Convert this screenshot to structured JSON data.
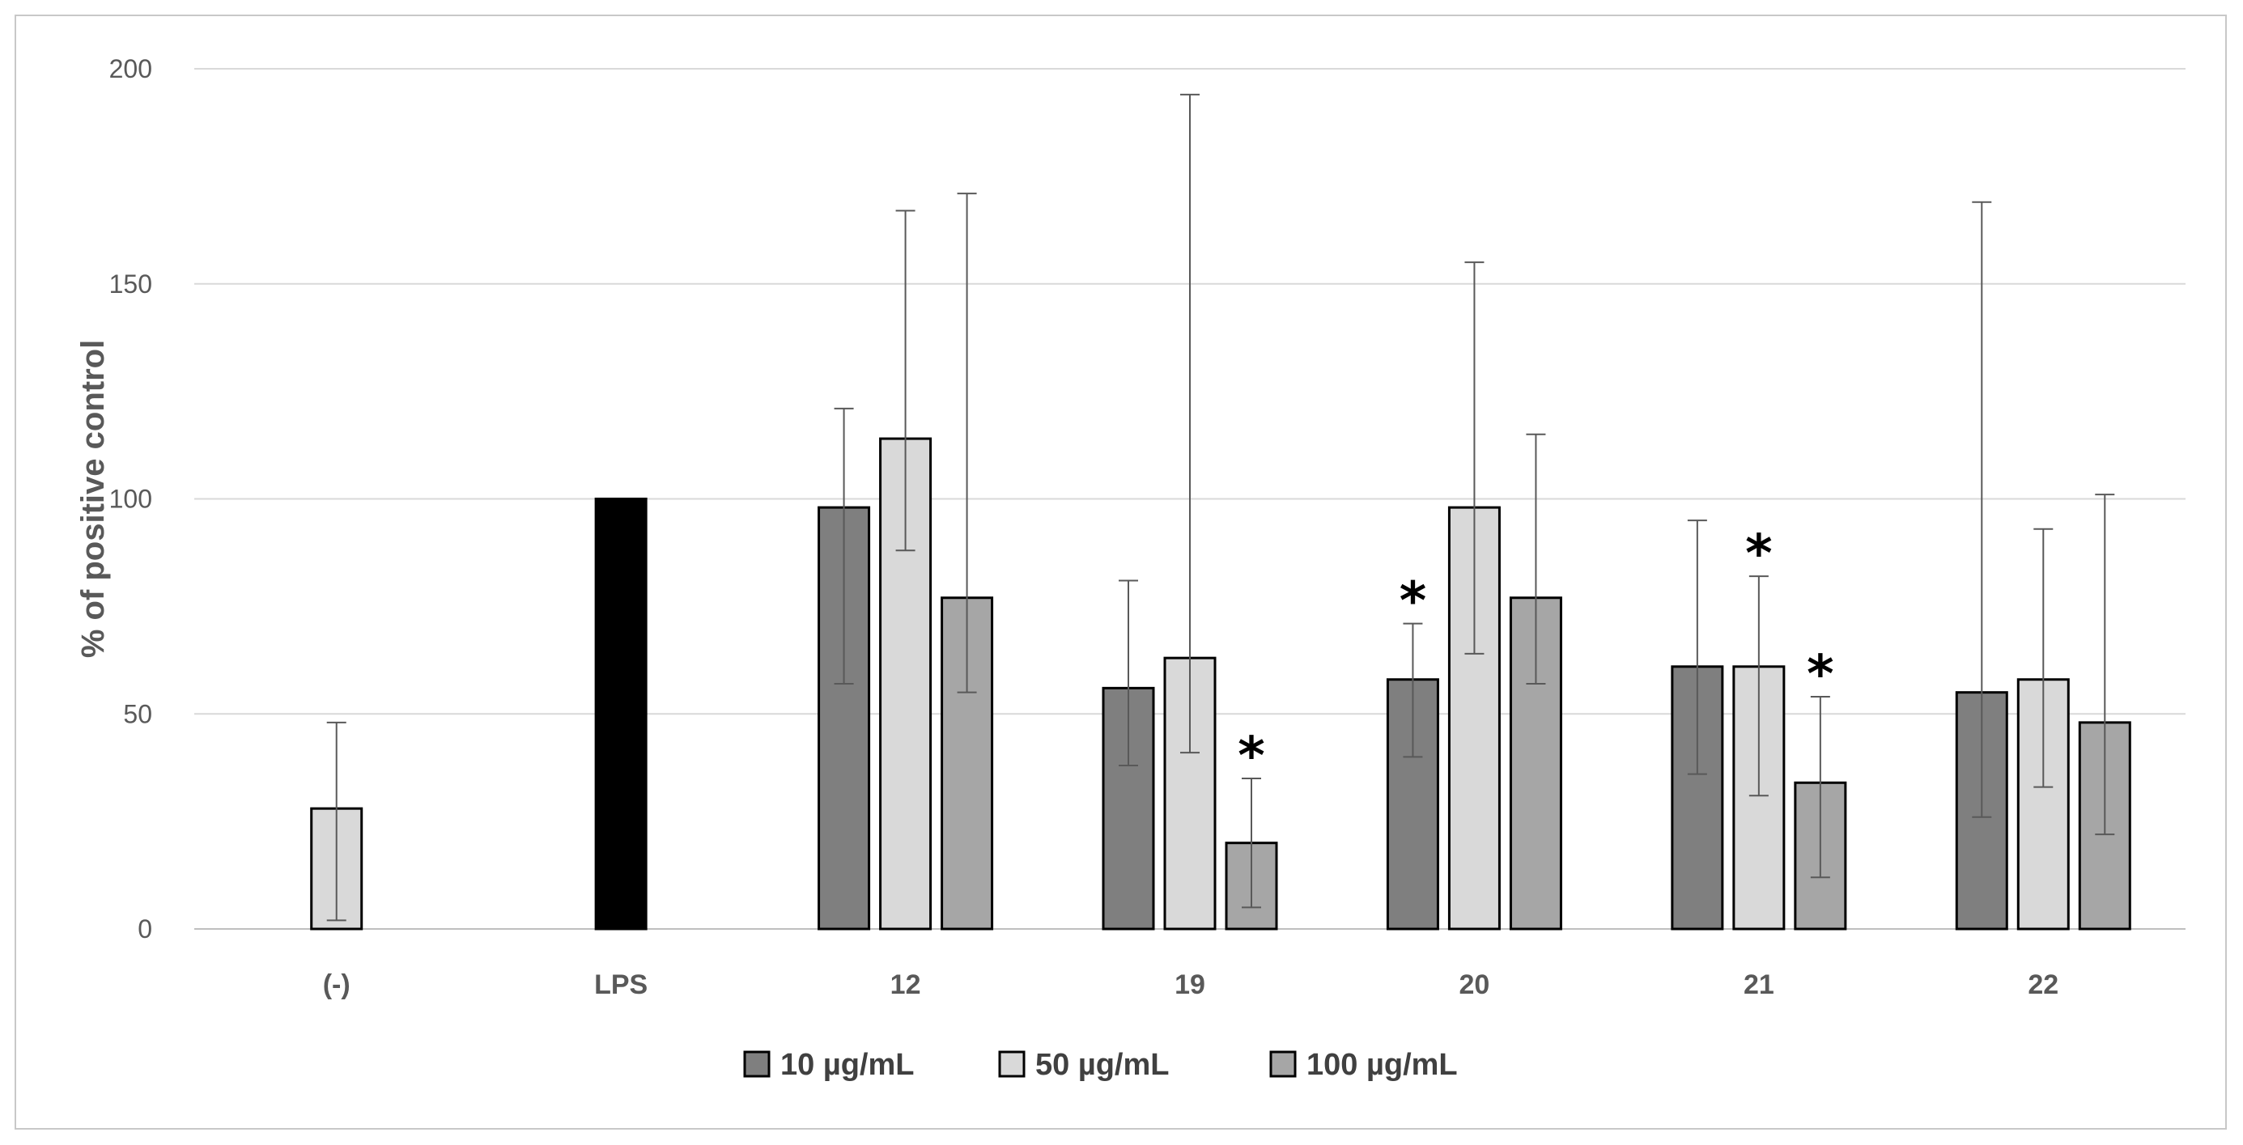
{
  "chart_data": {
    "type": "bar",
    "title": "",
    "xlabel": "",
    "ylabel": "% of positive control",
    "ylim": [
      0,
      200
    ],
    "yticks": [
      "0",
      "50",
      "100",
      "150",
      "200"
    ],
    "grid": true,
    "legend_position": "bottom",
    "categories": [
      "(-)",
      "LPS",
      "12",
      "19",
      "20",
      "21",
      "22"
    ],
    "single_bars": [
      {
        "category": "(-)",
        "value": 28,
        "error_low": 2,
        "error_high": 48,
        "color": "#d9d9d9"
      },
      {
        "category": "LPS",
        "value": 100,
        "error_low": 100,
        "error_high": 100,
        "color": "#000000"
      }
    ],
    "series": [
      {
        "name": "10 µg/mL",
        "color": "#7f7f7f",
        "values": [
          null,
          null,
          98,
          56,
          58,
          61,
          55
        ],
        "error_low": [
          null,
          null,
          57,
          38,
          40,
          36,
          26
        ],
        "error_high": [
          null,
          null,
          121,
          81,
          71,
          95,
          169
        ],
        "significant": [
          false,
          false,
          false,
          false,
          true,
          false,
          false
        ]
      },
      {
        "name": "50 µg/mL",
        "color": "#d9d9d9",
        "values": [
          null,
          null,
          114,
          63,
          98,
          61,
          58
        ],
        "error_low": [
          null,
          null,
          88,
          41,
          64,
          31,
          33
        ],
        "error_high": [
          null,
          null,
          167,
          194,
          155,
          82,
          93
        ],
        "significant": [
          false,
          false,
          false,
          false,
          false,
          true,
          false
        ]
      },
      {
        "name": "100 µg/mL",
        "color": "#a6a6a6",
        "values": [
          null,
          null,
          77,
          20,
          77,
          34,
          48
        ],
        "error_low": [
          null,
          null,
          55,
          5,
          57,
          12,
          22
        ],
        "error_high": [
          null,
          null,
          171,
          35,
          115,
          54,
          101
        ],
        "significant": [
          false,
          false,
          false,
          true,
          false,
          true,
          false
        ]
      }
    ],
    "significance_marker": "*"
  }
}
